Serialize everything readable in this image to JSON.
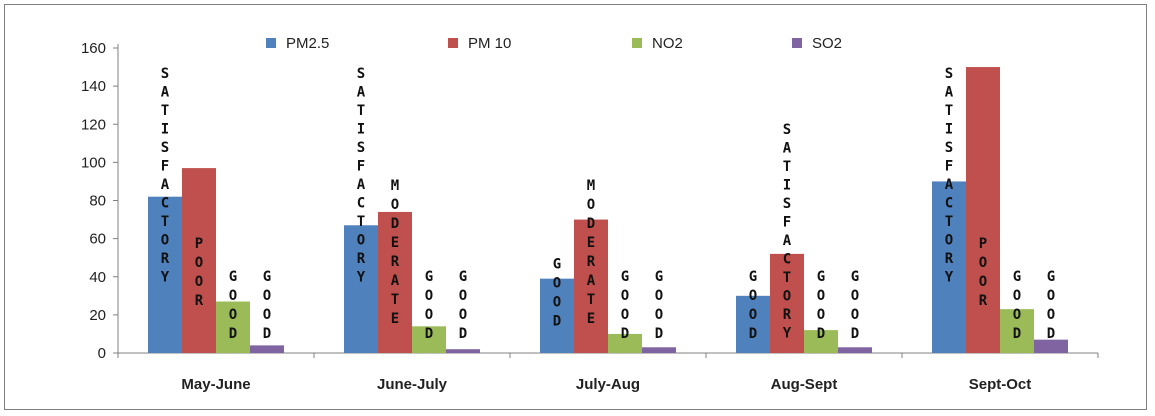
{
  "chart_data": {
    "type": "bar",
    "title": "",
    "xlabel": "",
    "ylabel": "",
    "ylim": [
      0,
      160
    ],
    "yticks": [
      0,
      20,
      40,
      60,
      80,
      100,
      120,
      140,
      160
    ],
    "grid": false,
    "legend_position": "top",
    "categories": [
      "May-June",
      "June-July",
      "July-Aug",
      "Aug-Sept",
      "Sept-Oct"
    ],
    "series": [
      {
        "name": "PM2.5",
        "color": "#4f81bd",
        "values": [
          82,
          67,
          39,
          30,
          90
        ],
        "labels": [
          "SATISFACTORY",
          "SATISFACTORY",
          "GOOD",
          "GOOD",
          "SATISFACTORY"
        ]
      },
      {
        "name": "PM 10",
        "color": "#c0504d",
        "values": [
          97,
          74,
          70,
          52,
          150
        ],
        "labels": [
          "POOR",
          "MODERATE",
          "MODERATE",
          "SATISFACTORY",
          "POOR"
        ]
      },
      {
        "name": "NO2",
        "color": "#9bbb59",
        "values": [
          27,
          14,
          10,
          12,
          23
        ],
        "labels": [
          "GOOD",
          "GOOD",
          "GOOD",
          "GOOD",
          "GOOD"
        ]
      },
      {
        "name": "SO2",
        "color": "#8064a2",
        "values": [
          4,
          2,
          3,
          3,
          7
        ],
        "labels": [
          "GOOD",
          "GOOD",
          "GOOD",
          "GOOD",
          "GOOD"
        ]
      }
    ]
  }
}
